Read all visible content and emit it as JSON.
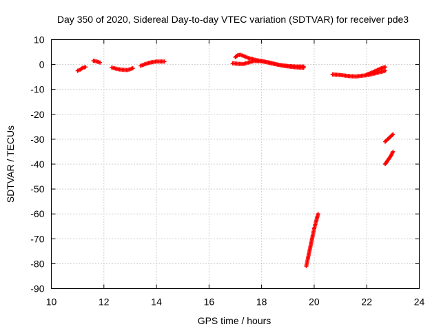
{
  "chart_data": {
    "type": "scatter",
    "title": "Day 350 of 2020, Sidereal Day-to-day VTEC variation (SDTVAR) for receiver pde3",
    "xlabel": "GPS time / hours",
    "ylabel": "SDTVAR / TECUs",
    "xlim": [
      10,
      24
    ],
    "ylim": [
      -90,
      10
    ],
    "x_ticks": [
      "10",
      "12",
      "14",
      "16",
      "18",
      "20",
      "22",
      "24"
    ],
    "y_ticks": [
      "10",
      "0",
      "-10",
      "-20",
      "-30",
      "-40",
      "-50",
      "-60",
      "-70",
      "-80",
      "-90"
    ],
    "grid": true,
    "marker": "plus",
    "color": "#ff0000",
    "series": [
      {
        "segments": [
          [
            [
              11.0,
              -2.5
            ],
            [
              11.1,
              -2.0
            ],
            [
              11.2,
              -1.3
            ],
            [
              11.3,
              -1.0
            ]
          ],
          [
            [
              11.6,
              1.5
            ],
            [
              11.7,
              1.3
            ],
            [
              11.8,
              1.0
            ],
            [
              11.85,
              0.8
            ]
          ],
          [
            [
              12.3,
              -1.2
            ],
            [
              12.5,
              -1.8
            ],
            [
              12.7,
              -2.1
            ],
            [
              12.9,
              -2.2
            ],
            [
              13.1,
              -1.5
            ]
          ],
          [
            [
              13.4,
              -0.5
            ],
            [
              13.6,
              0.3
            ],
            [
              13.8,
              0.9
            ],
            [
              14.0,
              1.2
            ],
            [
              14.3,
              1.2
            ]
          ],
          [
            [
              16.9,
              0.5
            ],
            [
              17.1,
              0.3
            ],
            [
              17.3,
              0.2
            ],
            [
              17.5,
              0.8
            ],
            [
              17.7,
              1.4
            ],
            [
              18.0,
              1.3
            ],
            [
              18.3,
              0.8
            ],
            [
              18.6,
              0.0
            ],
            [
              18.9,
              -0.6
            ],
            [
              19.2,
              -1.0
            ],
            [
              19.4,
              -1.2
            ],
            [
              19.6,
              -1.3
            ]
          ],
          [
            [
              17.0,
              3.0
            ],
            [
              17.1,
              3.8
            ],
            [
              17.2,
              3.9
            ],
            [
              17.35,
              3.3
            ],
            [
              17.5,
              2.6
            ],
            [
              17.8,
              1.8
            ],
            [
              18.1,
              1.2
            ],
            [
              18.4,
              0.4
            ],
            [
              18.7,
              -0.2
            ],
            [
              19.0,
              -0.6
            ],
            [
              19.3,
              -0.8
            ],
            [
              19.6,
              -0.8
            ]
          ],
          [
            [
              20.7,
              -4.0
            ],
            [
              21.0,
              -4.2
            ],
            [
              21.3,
              -4.6
            ],
            [
              21.6,
              -4.8
            ],
            [
              21.8,
              -4.5
            ],
            [
              22.0,
              -4.3
            ],
            [
              22.3,
              -3.6
            ],
            [
              22.6,
              -2.8
            ],
            [
              22.7,
              -2.5
            ]
          ],
          [
            [
              22.0,
              -4.0
            ],
            [
              22.2,
              -3.2
            ],
            [
              22.4,
              -2.2
            ],
            [
              22.55,
              -1.5
            ],
            [
              22.7,
              -1.0
            ]
          ],
          [
            [
              22.7,
              -31.0
            ],
            [
              22.8,
              -30.0
            ],
            [
              22.9,
              -29.0
            ],
            [
              23.0,
              -28.0
            ]
          ],
          [
            [
              22.7,
              -40.0
            ],
            [
              22.8,
              -38.5
            ],
            [
              22.9,
              -37.0
            ],
            [
              23.0,
              -35.0
            ]
          ],
          [
            [
              19.7,
              -81.0
            ],
            [
              19.8,
              -76.0
            ],
            [
              19.9,
              -71.0
            ],
            [
              20.0,
              -66.0
            ],
            [
              20.1,
              -62.0
            ],
            [
              20.15,
              -60.0
            ]
          ]
        ]
      }
    ]
  }
}
